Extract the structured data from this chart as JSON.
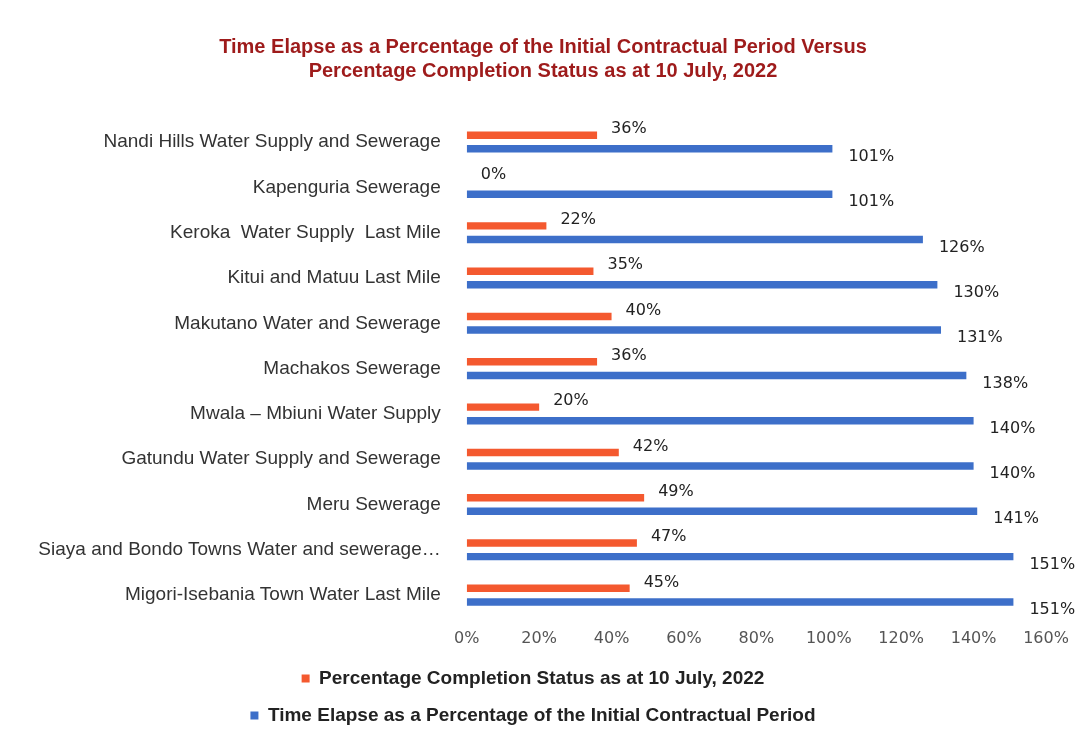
{
  "chart_data": {
    "type": "bar",
    "orientation": "horizontal",
    "title": "Time Elapse as a Percentage of the Initial Contractual Period Versus Percentage Completion Status as at 10 July, 2022",
    "categories": [
      "Nandi Hills Water Supply and Sewerage",
      "Kapenguria Sewerage",
      "Keroka  Water Supply  Last Mile",
      "Kitui and Matuu Last Mile",
      "Makutano Water and Sewerage",
      "Machakos Sewerage",
      "Mwala – Mbiuni Water Supply",
      "Gatundu Water Supply and Sewerage",
      "Meru Sewerage",
      "Siaya and Bondo Towns Water and sewerage…",
      "Migori-Isebania Town Water Last Mile"
    ],
    "series": [
      {
        "name": "Percentage Completion Status as at 10 July, 2022",
        "color": "#f4592f",
        "values": [
          36,
          0,
          22,
          35,
          40,
          36,
          20,
          42,
          49,
          47,
          45
        ],
        "value_labels": [
          "36%",
          "0%",
          "22%",
          "35%",
          "40%",
          "36%",
          "20%",
          "42%",
          "49%",
          "47%",
          "45%"
        ]
      },
      {
        "name": "Time Elapse as a Percentage of the Initial Contractual Period",
        "color": "#3d6fc9",
        "values": [
          101,
          101,
          126,
          130,
          131,
          138,
          140,
          140,
          141,
          151,
          151
        ],
        "value_labels": [
          "101%",
          "101%",
          "126%",
          "130%",
          "131%",
          "138%",
          "140%",
          "140%",
          "141%",
          "151%",
          "151%"
        ]
      }
    ],
    "xlim": [
      0,
      160
    ],
    "xticks": [
      {
        "value": 0,
        "label": "0%"
      },
      {
        "value": 20,
        "label": "20%"
      },
      {
        "value": 40,
        "label": "40%"
      },
      {
        "value": 60,
        "label": "60%"
      },
      {
        "value": 80,
        "label": "80%"
      },
      {
        "value": 100,
        "label": "100%"
      },
      {
        "value": 120,
        "label": "120%"
      },
      {
        "value": 140,
        "label": "140%"
      },
      {
        "value": 160,
        "label": "160%"
      }
    ],
    "legend": "bottom"
  }
}
